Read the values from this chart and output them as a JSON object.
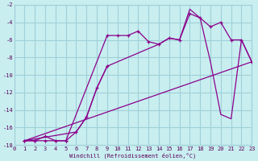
{
  "xlabel": "Windchill (Refroidissement éolien,°C)",
  "bg_color": "#c8eef0",
  "grid_color": "#a0d0d8",
  "line_color": "#8b008b",
  "xlim": [
    0,
    23
  ],
  "ylim": [
    -18,
    -2
  ],
  "xticks": [
    0,
    1,
    2,
    3,
    4,
    5,
    6,
    7,
    8,
    9,
    10,
    11,
    12,
    13,
    14,
    15,
    16,
    17,
    18,
    19,
    20,
    21,
    22,
    23
  ],
  "yticks": [
    -18,
    -16,
    -14,
    -12,
    -10,
    -8,
    -6,
    -4,
    -2
  ],
  "line1_x": [
    1,
    2,
    3,
    4,
    5,
    9,
    10,
    11,
    12,
    13,
    14,
    15,
    16,
    17,
    18,
    19,
    20,
    21,
    22,
    23
  ],
  "line1_y": [
    -17.5,
    -17.5,
    -17.0,
    -17.5,
    -17.5,
    -5.5,
    -5.5,
    -5.5,
    -5.0,
    -6.2,
    -6.5,
    -5.8,
    -6.0,
    -3.0,
    -3.5,
    -4.5,
    -4.0,
    -6.0,
    -6.0,
    -8.5
  ],
  "line2_x": [
    1,
    2,
    3,
    4,
    5,
    6,
    7,
    8,
    9
  ],
  "line2_y": [
    -17.5,
    -17.5,
    -17.5,
    -17.5,
    -17.5,
    -16.5,
    -14.8,
    -11.5,
    -9.0
  ],
  "line3_x": [
    1,
    23
  ],
  "line3_y": [
    -17.5,
    -8.5
  ],
  "line4_x": [
    1,
    6,
    7,
    8,
    9,
    14,
    15,
    16,
    17,
    18,
    19,
    20,
    21,
    22,
    23
  ],
  "line4_y": [
    -17.5,
    -16.5,
    -14.8,
    -11.5,
    -9.0,
    -6.5,
    -5.8,
    -6.0,
    -2.5,
    -3.5,
    -8.5,
    -14.5,
    -15.0,
    -6.0,
    -8.5
  ]
}
